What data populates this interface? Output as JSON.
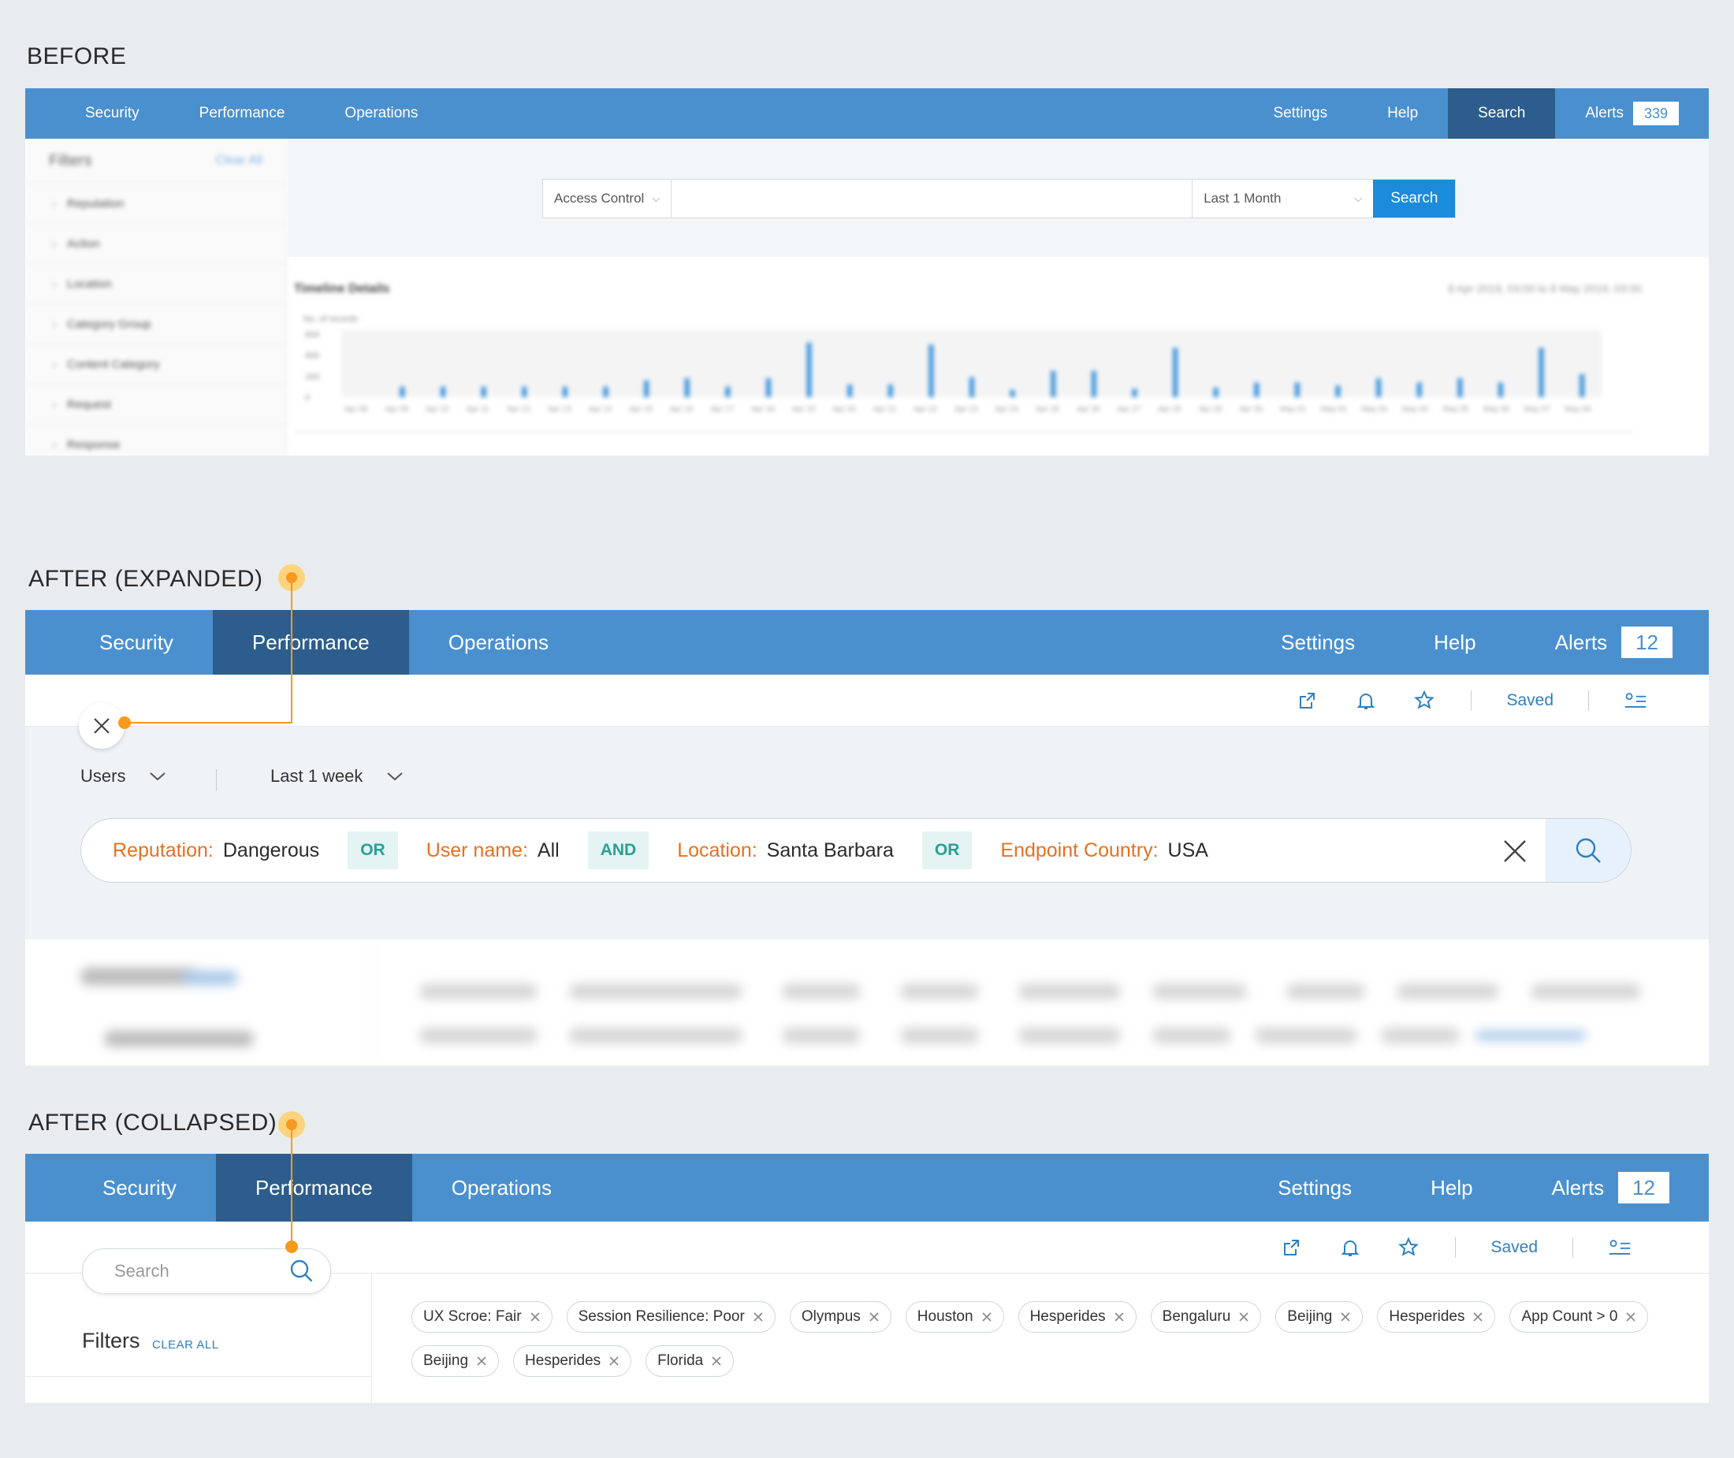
{
  "sections": {
    "before": "BEFORE",
    "after_expanded": "AFTER (EXPANDED)",
    "after_collapsed": "AFTER (COLLAPSED)"
  },
  "before": {
    "nav": {
      "security": "Security",
      "performance": "Performance",
      "operations": "Operations",
      "settings": "Settings",
      "help": "Help",
      "search": "Search",
      "alerts": "Alerts",
      "alerts_count": "339"
    },
    "sidebar": {
      "title": "Filters",
      "clear": "Clear All",
      "items": [
        "Reputation",
        "Action",
        "Location",
        "Category Group",
        "Content Category",
        "Request",
        "Response"
      ]
    },
    "search": {
      "scope": "Access Control",
      "range": "Last 1 Month",
      "button": "Search"
    },
    "chart_title": "Timeline Details",
    "chart_range": "8 Apr 2019, 03:00 to 8 May 2019, 03:00",
    "chart_data": {
      "type": "bar",
      "title": "Timeline Details",
      "ylabel": "No. of records",
      "yticks": [
        "600",
        "400",
        "200",
        "0"
      ],
      "ylim": [
        0,
        600
      ],
      "categories": [
        "Apr 08",
        "Apr 09",
        "Apr 10",
        "Apr 11",
        "Apr 12",
        "Apr 13",
        "Apr 14",
        "Apr 15",
        "Apr 16",
        "Apr 17",
        "Apr 18",
        "Apr 19",
        "Apr 20",
        "Apr 21",
        "Apr 22",
        "Apr 23",
        "Apr 24",
        "Apr 25",
        "Apr 26",
        "Apr 27",
        "Apr 28",
        "Apr 29",
        "Apr 30",
        "May 01",
        "May 02",
        "May 03",
        "May 04",
        "May 05",
        "May 06",
        "May 07",
        "May 08"
      ],
      "values": [
        0,
        100,
        100,
        100,
        100,
        100,
        100,
        160,
        180,
        100,
        180,
        520,
        120,
        120,
        500,
        190,
        70,
        250,
        250,
        80,
        470,
        90,
        140,
        140,
        110,
        180,
        140,
        180,
        140,
        470,
        220
      ]
    }
  },
  "expanded": {
    "nav": {
      "security": "Security",
      "performance": "Performance",
      "operations": "Operations",
      "settings": "Settings",
      "help": "Help",
      "alerts": "Alerts",
      "alerts_count": "12"
    },
    "toolbar": {
      "saved": "Saved"
    },
    "dropdowns": {
      "users": "Users",
      "range": "Last 1 week"
    },
    "query": [
      {
        "key": "Reputation:",
        "value": "Dangerous",
        "op": "OR"
      },
      {
        "key": "User name:",
        "value": "All",
        "op": "AND"
      },
      {
        "key": "Location:",
        "value": "Santa Barbara",
        "op": "OR"
      },
      {
        "key": "Endpoint Country:",
        "value": "USA"
      }
    ]
  },
  "collapsed": {
    "nav": {
      "security": "Security",
      "performance": "Performance",
      "operations": "Operations",
      "settings": "Settings",
      "help": "Help",
      "alerts": "Alerts",
      "alerts_count": "12"
    },
    "toolbar": {
      "saved": "Saved"
    },
    "search_placeholder": "Search",
    "filters_title": "Filters",
    "clear_all": "CLEAR ALL",
    "chips": [
      "UX Scroe: Fair",
      "Session Resilience: Poor",
      "Olympus",
      "Houston",
      "Hesperides",
      "Bengaluru",
      "Beijing",
      "Hesperides",
      "App Count > 0",
      "Beijing",
      "Hesperides",
      "Florida"
    ]
  },
  "colors": {
    "nav": "#4a90cf",
    "nav_active": "#2c5d8c",
    "annotation": "#f59a1f",
    "query_key": "#e8701f",
    "operator": "#28a095",
    "link": "#2d7fc1"
  }
}
